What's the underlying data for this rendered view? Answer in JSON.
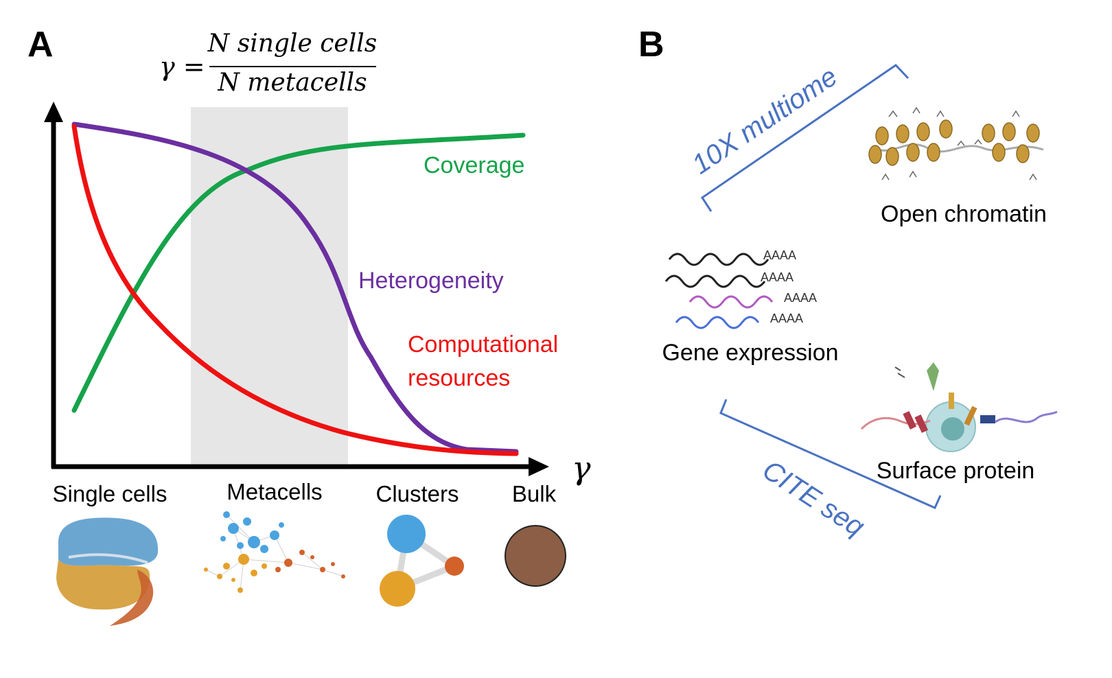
{
  "panel_a": {
    "label": "A",
    "formula": {
      "lhs": "γ =",
      "numerator": "N single cells",
      "denominator": "N metacells"
    },
    "x_axis_symbol": "γ",
    "curves": {
      "coverage": {
        "label": "Coverage",
        "color": "#16a34a"
      },
      "heterogeneity": {
        "label": "Heterogeneity",
        "color": "#6b2fa0"
      },
      "computational": {
        "label_line1": "Computational",
        "label_line2": "resources",
        "color": "#ee1111"
      }
    },
    "granularity": [
      "Single cells",
      "Metacells",
      "Clusters",
      "Bulk"
    ],
    "colors": {
      "blue": "#4aa3df",
      "orange": "#e4a12a",
      "rust": "#d2622a",
      "brown": "#8b5e45"
    }
  },
  "panel_b": {
    "label": "B",
    "assay_top": "10X multiome",
    "assay_bottom": "CITE seq",
    "assay_color": "#4a72c0",
    "modalities": {
      "chromatin": "Open chromatin",
      "expression": "Gene expression",
      "protein": "Surface protein"
    },
    "polya": [
      "AAAA",
      "AAAA",
      "AAAA",
      "AAAA"
    ]
  }
}
